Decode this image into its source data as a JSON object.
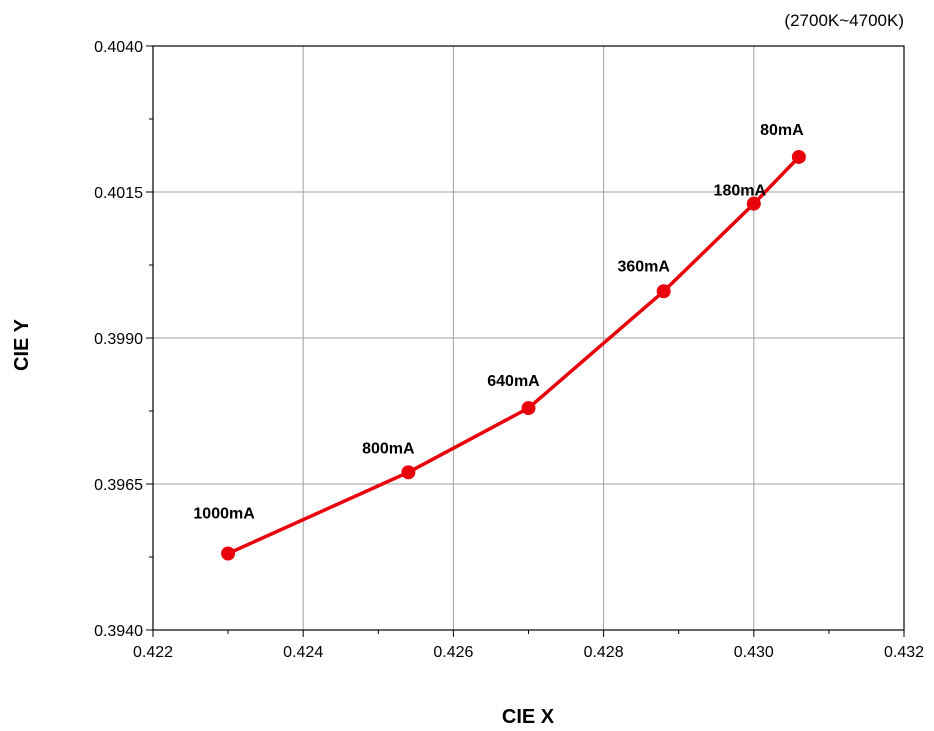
{
  "chart_data": {
    "type": "line",
    "subtitle": "(2700K~4700K)",
    "xlabel": "CIE X",
    "ylabel": "CIE Y",
    "xlim": [
      0.422,
      0.432
    ],
    "ylim": [
      0.394,
      0.404
    ],
    "x_ticks": [
      "0.422",
      "0.424",
      "0.426",
      "0.428",
      "0.430",
      "0.432"
    ],
    "y_ticks": [
      "0.3940",
      "0.3965",
      "0.3990",
      "0.4015",
      "0.4040"
    ],
    "grid": true,
    "series": [
      {
        "color": "#e8000b",
        "points": [
          {
            "x": 0.423,
            "y": 0.39531,
            "label": "1000mA"
          },
          {
            "x": 0.4254,
            "y": 0.3967,
            "label": "800mA"
          },
          {
            "x": 0.427,
            "y": 0.3978,
            "label": "640mA"
          },
          {
            "x": 0.4288,
            "y": 0.3998,
            "label": "360mA"
          },
          {
            "x": 0.43,
            "y": 0.4013,
            "label": "180mA"
          },
          {
            "x": 0.4306,
            "y": 0.4021,
            "label": "80mA"
          }
        ]
      }
    ]
  }
}
